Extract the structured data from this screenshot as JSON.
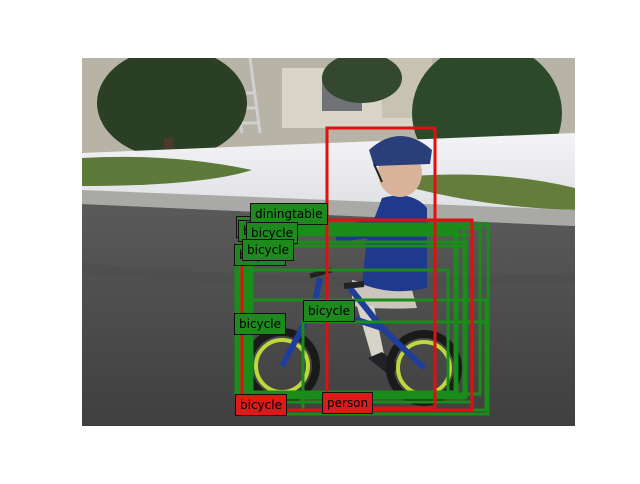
{
  "colors": {
    "detection": "#1a8c1a",
    "ground_truth": "#e01010",
    "label_detection_bg": "#1e8a1e",
    "label_ground_truth_bg": "#dd1a1a"
  },
  "detections": [
    {
      "label": "diningtable",
      "kind": "detection"
    },
    {
      "label": "bicycle",
      "kind": "detection"
    },
    {
      "label": "bicycle",
      "kind": "detection"
    },
    {
      "label": "bicycle",
      "kind": "detection"
    },
    {
      "label": "bicycle",
      "kind": "detection"
    },
    {
      "label": "bicycle",
      "kind": "detection"
    },
    {
      "label": "bicycle",
      "kind": "detection"
    },
    {
      "label": "bicycle",
      "kind": "detection"
    },
    {
      "label": "bicycle",
      "kind": "ground_truth"
    },
    {
      "label": "person",
      "kind": "ground_truth"
    }
  ]
}
